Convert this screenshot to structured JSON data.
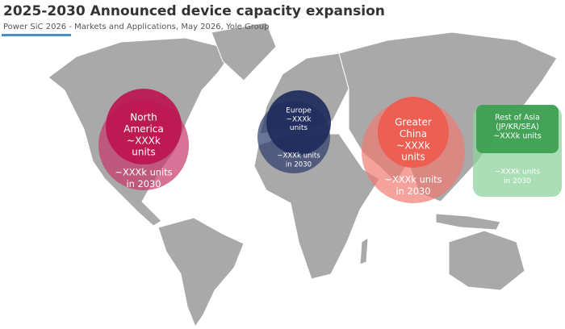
{
  "header": {
    "title": "2025-2030 Announced device capacity expansion",
    "subtitle": "Power SiC 2026 - Markets and Applications, May 2026, Yole Group"
  },
  "regions": [
    {
      "name": [
        "North",
        "America"
      ],
      "current": [
        "~XXXk",
        "units"
      ],
      "future": [
        "~XXXk units",
        "in 2030"
      ]
    },
    {
      "name": [
        "Europe"
      ],
      "current": [
        "~XXXk",
        "units"
      ],
      "future": [
        "~XXXk units",
        "in 2030"
      ]
    },
    {
      "name": [
        "Greater",
        "China"
      ],
      "current": [
        "~XXXk",
        "units"
      ],
      "future": [
        "~XXXk units",
        "in 2030"
      ]
    },
    {
      "name": [
        "Rest of Asia",
        "(JP/KR/SEA)"
      ],
      "current": [
        "~XXXk units"
      ],
      "future": [
        "~XXXk units",
        "in 2030"
      ]
    }
  ]
}
